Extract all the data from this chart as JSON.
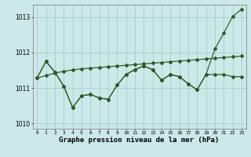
{
  "xlabel": "Graphe pression niveau de la mer (hPa)",
  "background_color": "#cce8e8",
  "grid_color": "#aacccc",
  "line_color": "#2d5a27",
  "ylim": [
    1009.85,
    1013.35
  ],
  "xlim": [
    -0.5,
    23.5
  ],
  "yticks": [
    1010,
    1011,
    1012,
    1013
  ],
  "xticks": [
    0,
    1,
    2,
    3,
    4,
    5,
    6,
    7,
    8,
    9,
    10,
    11,
    12,
    13,
    14,
    15,
    16,
    17,
    18,
    19,
    20,
    21,
    22,
    23
  ],
  "line_a_y": [
    1011.28,
    1011.35,
    1011.42,
    1011.47,
    1011.51,
    1011.54,
    1011.56,
    1011.58,
    1011.6,
    1011.62,
    1011.64,
    1011.66,
    1011.68,
    1011.7,
    1011.72,
    1011.74,
    1011.76,
    1011.78,
    1011.8,
    1011.82,
    1011.84,
    1011.86,
    1011.88,
    1011.9
  ],
  "line_b_y": [
    1011.28,
    1011.75,
    1011.45,
    1011.05,
    1010.45,
    1010.78,
    1010.82,
    1010.72,
    1010.68,
    1011.08,
    1011.38,
    1011.52,
    1011.62,
    1011.52,
    1011.22,
    1011.38,
    1011.32,
    1011.12,
    1010.95,
    1011.38,
    1011.38,
    1011.38,
    1011.32,
    1011.32
  ],
  "line_c_y": [
    1011.28,
    1011.75,
    1011.45,
    1011.05,
    1010.45,
    1010.78,
    1010.82,
    1010.72,
    1010.68,
    1011.08,
    1011.38,
    1011.52,
    1011.62,
    1011.52,
    1011.22,
    1011.38,
    1011.32,
    1011.12,
    1010.95,
    1011.38,
    1012.1,
    1012.55,
    1013.02,
    1013.22
  ]
}
